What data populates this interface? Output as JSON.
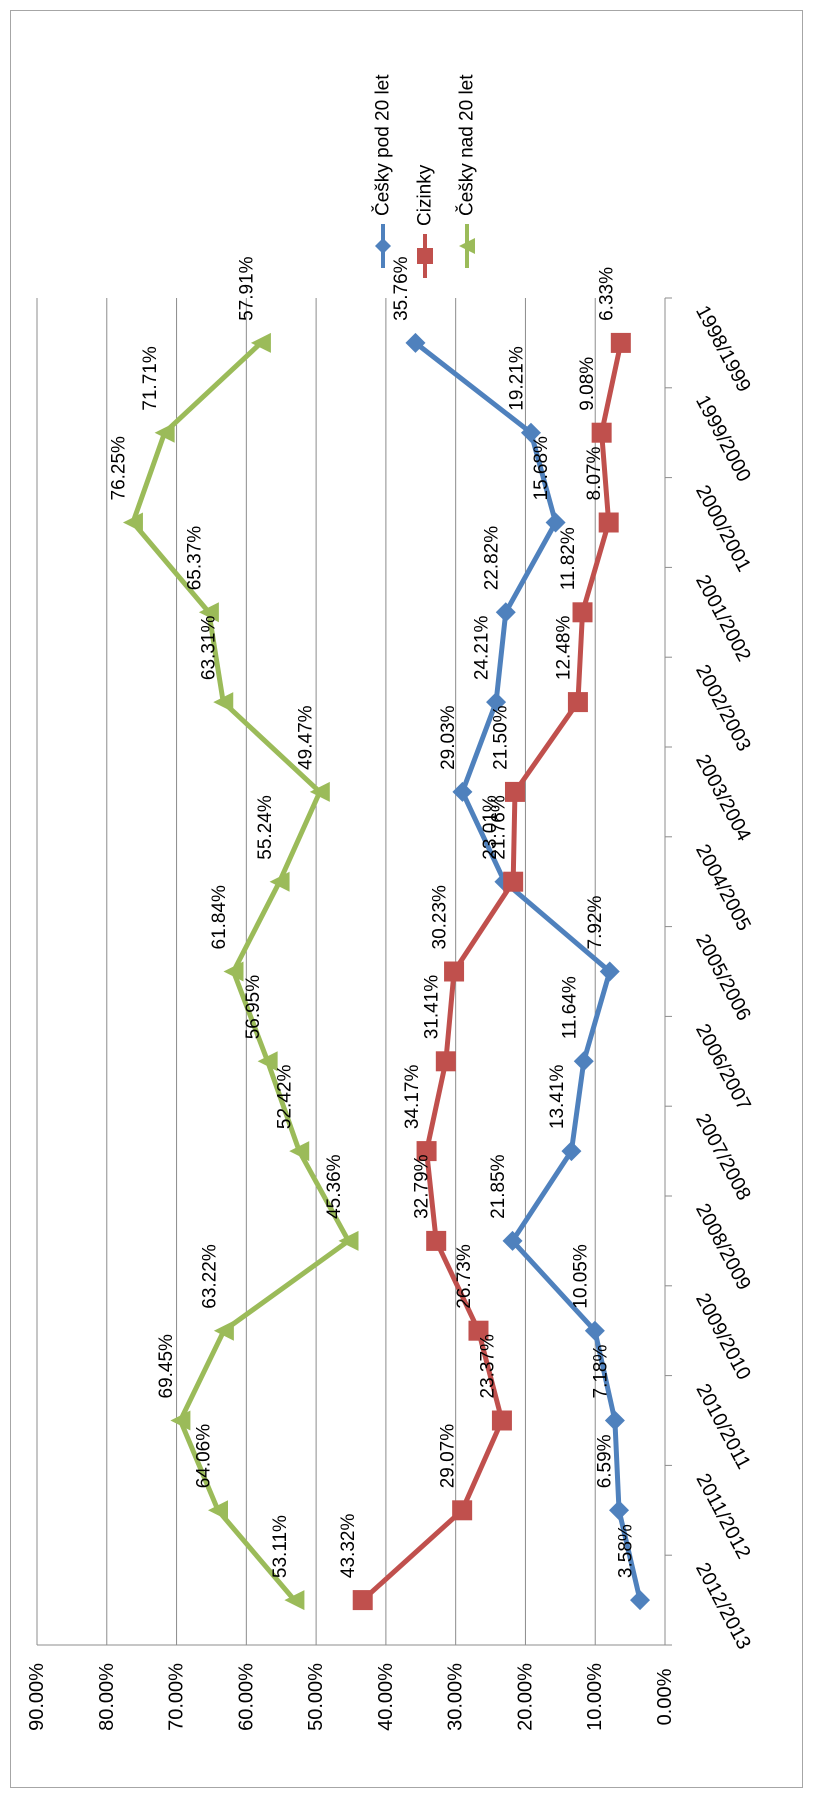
{
  "chart_data": {
    "type": "line",
    "orientation": "rotated-90",
    "categories": [
      "1998/1999",
      "1999/2000",
      "2000/2001",
      "2001/2002",
      "2002/2003",
      "2003/2004",
      "2004/2005",
      "2005/2006",
      "2006/2007",
      "2007/2008",
      "2008/2009",
      "2009/2010",
      "2010/2011",
      "2011/2012",
      "2012/2013"
    ],
    "y_ticks": [
      "0.00%",
      "10.00%",
      "20.00%",
      "30.00%",
      "40.00%",
      "50.00%",
      "60.00%",
      "70.00%",
      "80.00%",
      "90.00%"
    ],
    "ylim": [
      0,
      90
    ],
    "grid": true,
    "legend_position": "top",
    "series": [
      {
        "name": "Češky pod 20 let",
        "color": "#4f81bd",
        "marker": "diamond",
        "values": [
          35.76,
          19.21,
          15.68,
          22.82,
          24.21,
          29.03,
          23.01,
          7.92,
          11.64,
          13.41,
          21.85,
          10.05,
          7.18,
          6.59,
          3.58
        ],
        "labels": [
          "35.76%",
          "19.21%",
          "15.68%",
          "22.82%",
          "24.21%",
          "29.03%",
          "23.01%",
          "7.92%",
          "11.64%",
          "13.41%",
          "21.85%",
          "10.05%",
          "7.18%",
          "6.59%",
          "3.58%"
        ]
      },
      {
        "name": "Cizinky",
        "color": "#c0504d",
        "marker": "square",
        "values": [
          6.33,
          9.08,
          8.07,
          11.82,
          12.48,
          21.5,
          21.76,
          30.23,
          31.41,
          34.17,
          32.79,
          26.73,
          23.37,
          29.07,
          43.32
        ],
        "labels": [
          "6.33%",
          "9.08%",
          "8.07%",
          "11.82%",
          "12.48%",
          "21.50%",
          "21.76%",
          "30.23%",
          "31.41%",
          "34.17%",
          "32.79%",
          "26.73%",
          "23.37%",
          "29.07%",
          "43.32%"
        ]
      },
      {
        "name": "Češky nad 20 let",
        "color": "#9bbb59",
        "marker": "triangle",
        "values": [
          57.91,
          71.71,
          76.25,
          65.37,
          63.31,
          49.47,
          55.24,
          61.84,
          56.95,
          52.42,
          45.36,
          63.22,
          69.45,
          64.06,
          53.11
        ],
        "labels": [
          "57.91%",
          "71.71%",
          "76.25%",
          "65.37%",
          "63.31%",
          "49.47%",
          "55.24%",
          "61.84%",
          "56.95%",
          "52.42%",
          "45.36%",
          "63.22%",
          "69.45%",
          "64.06%",
          "53.11%"
        ]
      }
    ]
  }
}
